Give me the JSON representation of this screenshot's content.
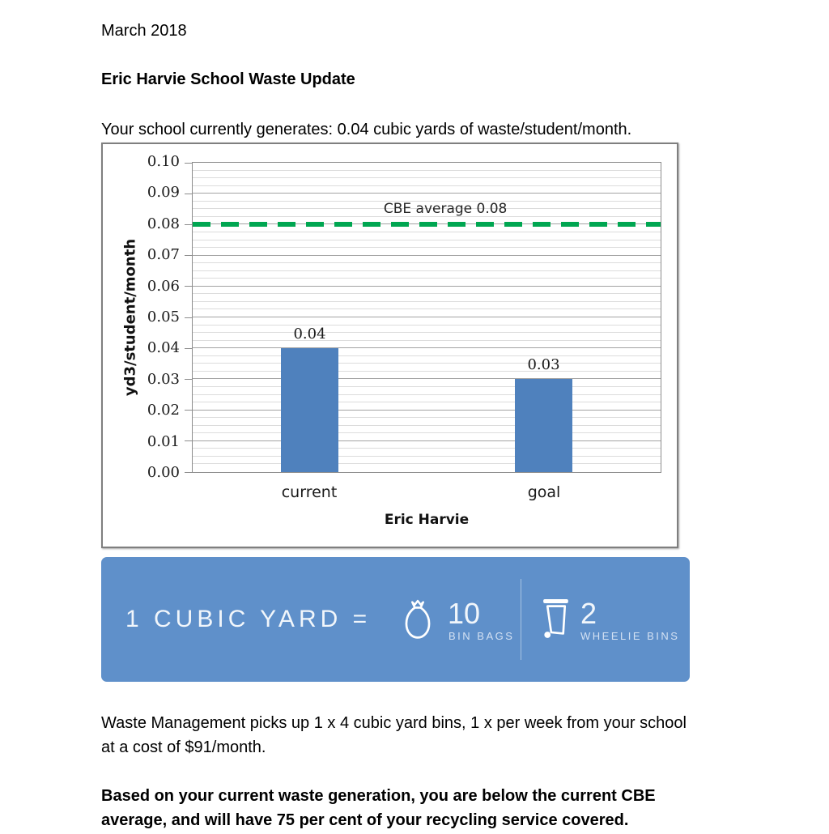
{
  "document": {
    "date_line": "March 2018",
    "title": "Eric Harvie School Waste Update",
    "intro_line": "Your school currently generates: 0.04 cubic yards of waste/student/month.",
    "paragraphs": {
      "pickup": [
        "Waste Management picks up 1 x 4 cubic yard bins, 1 x per week from your school",
        "at a cost of $91/month."
      ],
      "summary": [
        "Based on your current waste generation, you are below the current CBE",
        "average, and will have 75 per cent of your recycling service covered."
      ]
    }
  },
  "chart_data": {
    "type": "bar",
    "title": "",
    "categories": [
      "current",
      "goal"
    ],
    "values": [
      0.04,
      0.03
    ],
    "data_labels": [
      "0.04",
      "0.03"
    ],
    "xlabel": "Eric Harvie",
    "ylabel": "yd3/student/month",
    "ylim": [
      0,
      0.1
    ],
    "ytick_step": 0.01,
    "minor_step": 0.0025,
    "yticks": [
      "0.10",
      "0.09",
      "0.08",
      "0.07",
      "0.06",
      "0.05",
      "0.04",
      "0.03",
      "0.02",
      "0.01",
      "0.00"
    ],
    "grid": true,
    "legend_position": "none",
    "bar_color": "#4f81bd",
    "reference_line": {
      "value": 0.08,
      "label": "CBE average 0.08",
      "style": "dashed",
      "color": "#00a651"
    }
  },
  "banner": {
    "background_color": "#5f90ca",
    "equation_label": "1 CUBIC YARD =",
    "items": [
      {
        "icon": "bin-bag-icon",
        "value": "10",
        "label": "BIN BAGS"
      },
      {
        "icon": "wheelie-bin-icon",
        "value": "2",
        "label": "WHEELIE BINS"
      }
    ]
  }
}
